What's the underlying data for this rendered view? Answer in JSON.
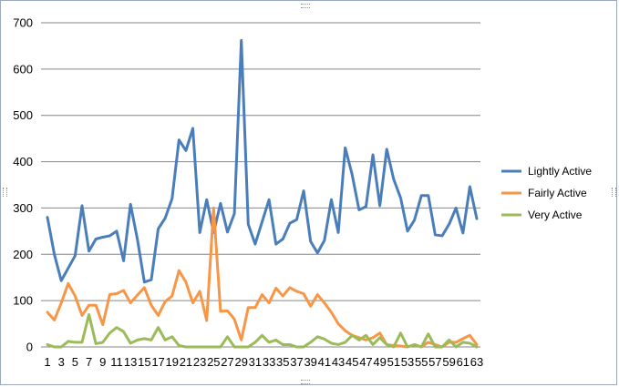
{
  "chart_data": {
    "type": "line",
    "title": "",
    "xlabel": "",
    "ylabel": "",
    "ylim": [
      0,
      700
    ],
    "yticks": [
      0,
      100,
      200,
      300,
      400,
      500,
      600,
      700
    ],
    "x": [
      1,
      2,
      3,
      4,
      5,
      6,
      7,
      8,
      9,
      10,
      11,
      12,
      13,
      14,
      15,
      16,
      17,
      18,
      19,
      20,
      21,
      22,
      23,
      24,
      25,
      26,
      27,
      28,
      29,
      30,
      31,
      32,
      33,
      34,
      35,
      36,
      37,
      38,
      39,
      40,
      41,
      42,
      43,
      44,
      45,
      46,
      47,
      48,
      49,
      50,
      51,
      52,
      53,
      54,
      55,
      56,
      57,
      58,
      59,
      60,
      61,
      62,
      63
    ],
    "xtick_labels": [
      "1",
      "3",
      "5",
      "7",
      "9",
      "11",
      "13",
      "15",
      "17",
      "19",
      "21",
      "23",
      "25",
      "27",
      "29",
      "31",
      "33",
      "35",
      "37",
      "39",
      "41",
      "43",
      "45",
      "47",
      "49",
      "51",
      "53",
      "55",
      "57",
      "59",
      "61",
      "63"
    ],
    "grid": true,
    "legend_position": "right",
    "series": [
      {
        "name": "Lightly Active",
        "color": "#4a7ebb",
        "values": [
          280,
          200,
          143,
          170,
          197,
          305,
          207,
          233,
          237,
          240,
          250,
          186,
          308,
          232,
          140,
          145,
          255,
          278,
          320,
          447,
          424,
          472,
          247,
          318,
          247,
          310,
          248,
          288,
          662,
          265,
          222,
          270,
          318,
          222,
          233,
          267,
          275,
          337,
          228,
          203,
          230,
          318,
          247,
          430,
          372,
          296,
          303,
          415,
          305,
          427,
          362,
          322,
          250,
          274,
          327,
          327,
          242,
          240,
          265,
          300,
          246,
          346,
          277
        ]
      },
      {
        "name": "Fairly Active",
        "color": "#f79646",
        "values": [
          75,
          58,
          95,
          137,
          110,
          68,
          90,
          90,
          48,
          113,
          115,
          122,
          95,
          112,
          128,
          90,
          68,
          98,
          110,
          165,
          140,
          95,
          120,
          57,
          300,
          77,
          78,
          60,
          15,
          85,
          85,
          113,
          95,
          127,
          110,
          128,
          120,
          115,
          88,
          113,
          95,
          75,
          50,
          35,
          25,
          20,
          15,
          20,
          30,
          5,
          3,
          2,
          0,
          5,
          0,
          10,
          5,
          0,
          10,
          10,
          18,
          25,
          5
        ]
      },
      {
        "name": "Very Active",
        "color": "#9bbb59",
        "values": [
          5,
          0,
          0,
          12,
          10,
          10,
          70,
          7,
          10,
          30,
          42,
          33,
          8,
          15,
          18,
          15,
          42,
          15,
          22,
          3,
          0,
          0,
          0,
          0,
          0,
          0,
          22,
          0,
          0,
          0,
          10,
          25,
          10,
          15,
          5,
          5,
          0,
          0,
          10,
          22,
          17,
          8,
          5,
          10,
          25,
          15,
          25,
          5,
          20,
          5,
          0,
          30,
          0,
          5,
          0,
          28,
          0,
          0,
          15,
          0,
          10,
          8,
          0
        ]
      }
    ]
  }
}
